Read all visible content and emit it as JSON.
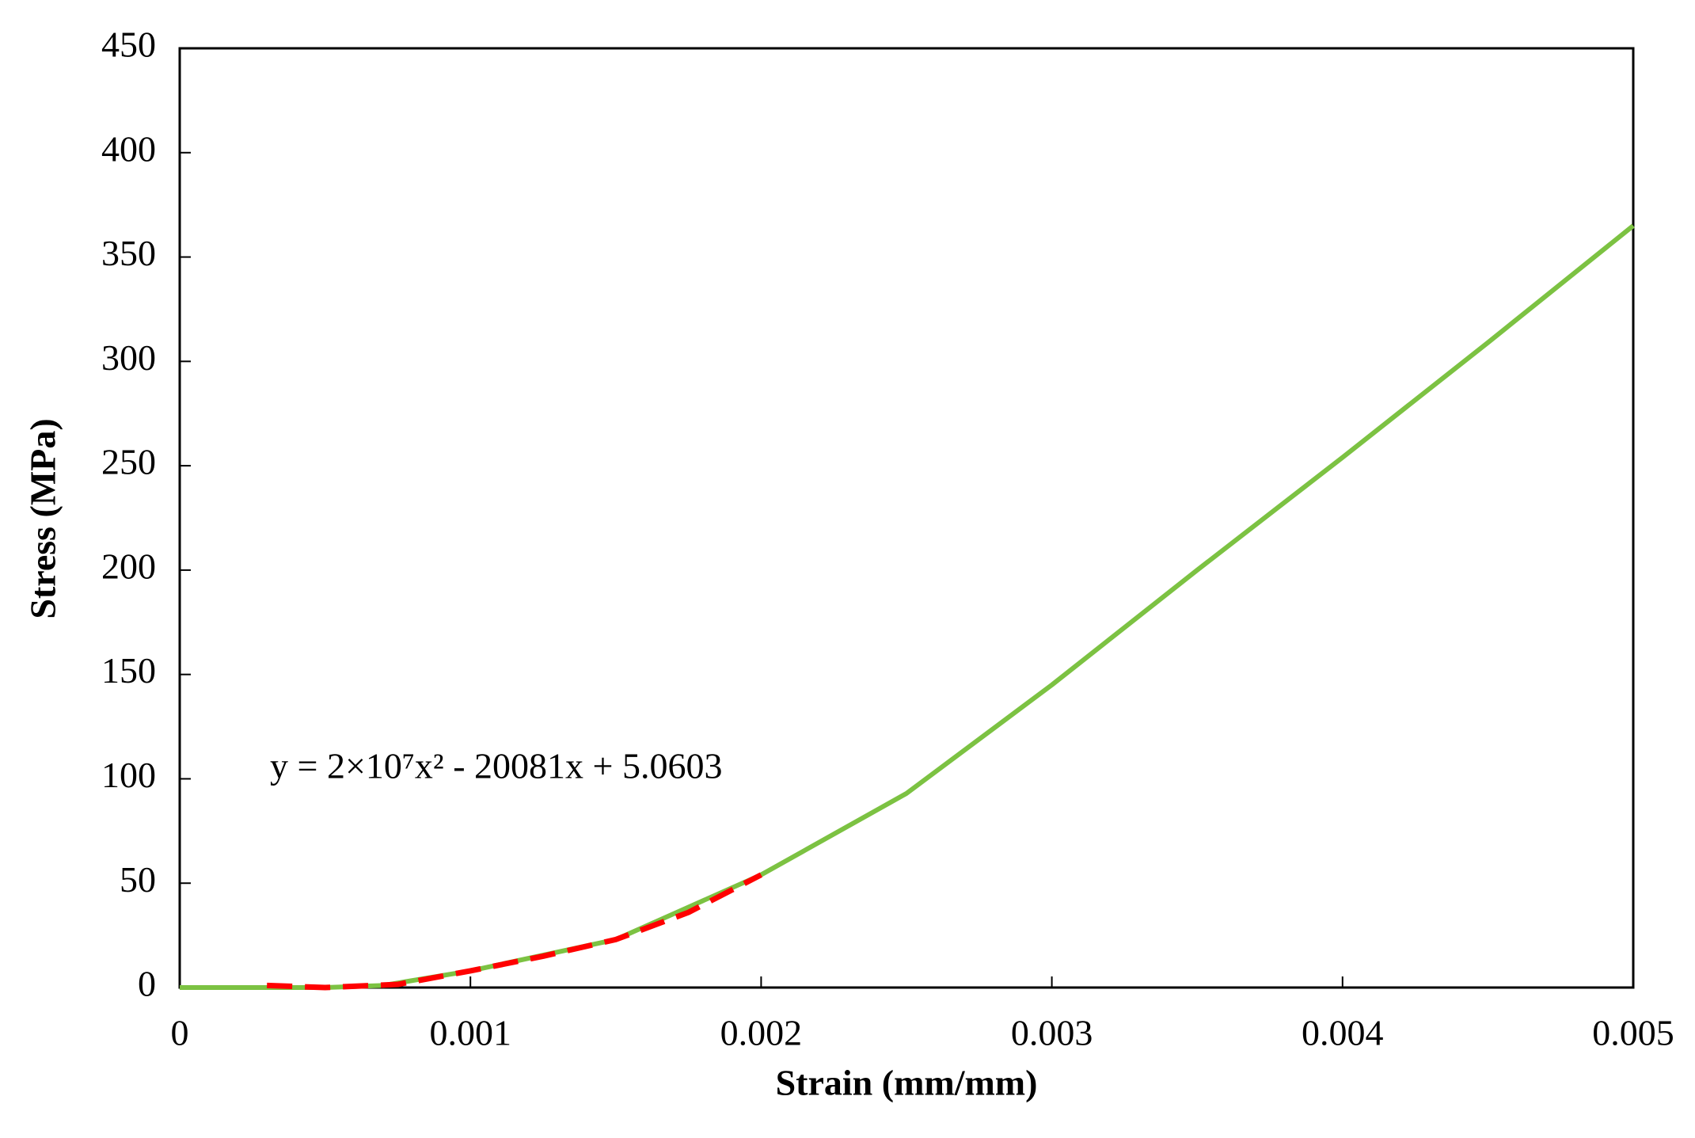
{
  "chart_data": {
    "type": "line",
    "xlabel": "Strain (mm/mm)",
    "ylabel": "Stress (MPa)",
    "annotation": "y = 2×10⁷x² - 20081x + 5.0603",
    "xlim": [
      0,
      0.005
    ],
    "ylim": [
      0,
      450
    ],
    "xticks": [
      0,
      0.001,
      0.002,
      0.003,
      0.004,
      0.005
    ],
    "yticks": [
      0,
      50,
      100,
      150,
      200,
      250,
      300,
      350,
      400,
      450
    ],
    "series": [
      {
        "color": "#7cc242",
        "dashed": false,
        "x": [
          0,
          0.0005,
          0.0007,
          0.001,
          0.0015,
          0.002,
          0.0025,
          0.003,
          0.0035,
          0.004,
          0.0045,
          0.005
        ],
        "values": [
          0,
          0,
          1,
          8,
          23,
          54,
          93,
          145,
          200,
          254,
          309,
          365
        ]
      },
      {
        "color": "#ff0000",
        "dashed": true,
        "x": [
          0.0003,
          0.0005,
          0.00075,
          0.001,
          0.00125,
          0.0015,
          0.00175,
          0.002
        ],
        "values": [
          1,
          0,
          1.5,
          8,
          15,
          23,
          36,
          54
        ]
      }
    ]
  }
}
